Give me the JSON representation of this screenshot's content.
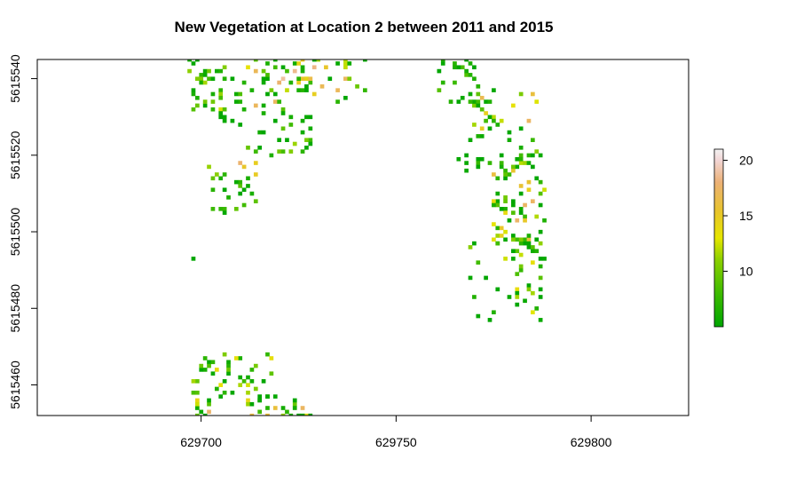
{
  "chart_data": {
    "type": "heatmap",
    "title": "New Vegetation at Location 2 between 2011 and 2015",
    "xlabel": "",
    "ylabel": "",
    "xlim": [
      629658,
      629825
    ],
    "ylim": [
      5615452,
      5615545
    ],
    "x_ticks": [
      629700,
      629750,
      629800
    ],
    "x_tick_labels": [
      "629700",
      "629750",
      "629800"
    ],
    "y_ticks": [
      5615460,
      5615480,
      5615500,
      5615520,
      5615540
    ],
    "y_tick_labels": [
      "5615460",
      "5615480",
      "5615500",
      "5615520",
      "5615540"
    ],
    "cell_size": 1,
    "legend": {
      "position": "right",
      "range": [
        5,
        21
      ],
      "ticks": [
        10,
        15,
        20
      ],
      "tick_labels": [
        "10",
        "15",
        "20"
      ],
      "color_stops": [
        {
          "value": 5,
          "color": "#00a600"
        },
        {
          "value": 8,
          "color": "#3ebb00"
        },
        {
          "value": 11,
          "color": "#8bd000"
        },
        {
          "value": 13,
          "color": "#e6e600"
        },
        {
          "value": 15.5,
          "color": "#e8c32e"
        },
        {
          "value": 18,
          "color": "#ecb176"
        },
        {
          "value": 20,
          "color": "#f2d6d6"
        },
        {
          "value": 21,
          "color": "#f2f2f2"
        }
      ]
    },
    "clusters": [
      {
        "x": [
          629697,
          629706
        ],
        "y": [
          5615531,
          5615545
        ],
        "n": 38,
        "vmin": 5,
        "vmax": 13
      },
      {
        "x": [
          629705,
          629712
        ],
        "y": [
          5615528,
          5615540
        ],
        "n": 14,
        "vmin": 5,
        "vmax": 9
      },
      {
        "x": [
          629712,
          629730
        ],
        "y": [
          5615532,
          5615545
        ],
        "n": 40,
        "vmin": 5,
        "vmax": 19
      },
      {
        "x": [
          629725,
          629744
        ],
        "y": [
          5615534,
          5615545
        ],
        "n": 30,
        "vmin": 5,
        "vmax": 18
      },
      {
        "x": [
          629711,
          629729
        ],
        "y": [
          5615520,
          5615532
        ],
        "n": 34,
        "vmin": 5,
        "vmax": 12
      },
      {
        "x": [
          629701,
          629714
        ],
        "y": [
          5615505,
          5615517
        ],
        "n": 24,
        "vmin": 5,
        "vmax": 12
      },
      {
        "x": [
          629710,
          629714
        ],
        "y": [
          5615514,
          5615519
        ],
        "n": 4,
        "vmin": 14,
        "vmax": 19
      },
      {
        "x": [
          629698,
          629698
        ],
        "y": [
          5615493,
          5615493
        ],
        "n": 1,
        "vmin": 5,
        "vmax": 5
      },
      {
        "x": [
          629759,
          629771
        ],
        "y": [
          5615533,
          5615545
        ],
        "n": 24,
        "vmin": 5,
        "vmax": 12
      },
      {
        "x": [
          629769,
          629786
        ],
        "y": [
          5615522,
          5615538
        ],
        "n": 34,
        "vmin": 5,
        "vmax": 18
      },
      {
        "x": [
          629766,
          629774
        ],
        "y": [
          5615516,
          5615520
        ],
        "n": 10,
        "vmin": 5,
        "vmax": 8
      },
      {
        "x": [
          629775,
          629788
        ],
        "y": [
          5615496,
          5615521
        ],
        "n": 80,
        "vmin": 5,
        "vmax": 18
      },
      {
        "x": [
          629769,
          629788
        ],
        "y": [
          5615476,
          5615498
        ],
        "n": 46,
        "vmin": 5,
        "vmax": 14
      },
      {
        "x": [
          629698,
          629709
        ],
        "y": [
          5615456,
          5615468
        ],
        "n": 26,
        "vmin": 5,
        "vmax": 14
      },
      {
        "x": [
          629708,
          629718
        ],
        "y": [
          5615455,
          5615468
        ],
        "n": 20,
        "vmin": 5,
        "vmax": 17
      },
      {
        "x": [
          629698,
          629702
        ],
        "y": [
          5615451,
          5615456
        ],
        "n": 10,
        "vmin": 5,
        "vmax": 19
      },
      {
        "x": [
          629712,
          629730
        ],
        "y": [
          5615451,
          5615457
        ],
        "n": 28,
        "vmin": 5,
        "vmax": 20
      }
    ]
  }
}
